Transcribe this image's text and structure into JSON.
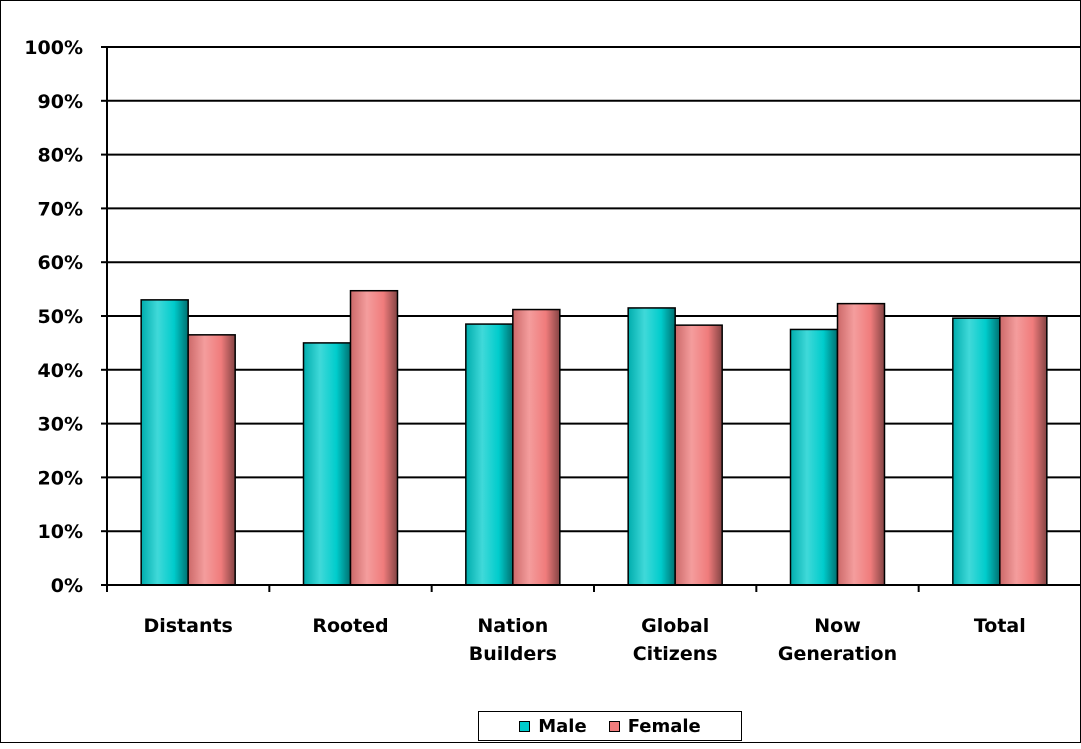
{
  "chart_data": {
    "type": "bar",
    "title": "",
    "xlabel": "",
    "ylabel": "",
    "categories": [
      [
        "Distants"
      ],
      [
        "Rooted"
      ],
      [
        "Nation",
        "Builders"
      ],
      [
        "Global",
        "Citizens"
      ],
      [
        "Now",
        "Generation"
      ],
      [
        "Total"
      ]
    ],
    "series": [
      {
        "name": "Male",
        "color": "#00CCCC",
        "values": [
          53,
          45,
          48.5,
          51.5,
          47.5,
          49.6
        ]
      },
      {
        "name": "Female",
        "color": "#F07C7C",
        "values": [
          46.5,
          54.7,
          51.2,
          48.3,
          52.3,
          50
        ]
      }
    ],
    "ylim": [
      0,
      100
    ],
    "yticks": [
      "0%",
      "10%",
      "20%",
      "30%",
      "40%",
      "50%",
      "60%",
      "70%",
      "80%",
      "90%",
      "100%"
    ],
    "grid": true,
    "legend_position": "bottom-center"
  }
}
